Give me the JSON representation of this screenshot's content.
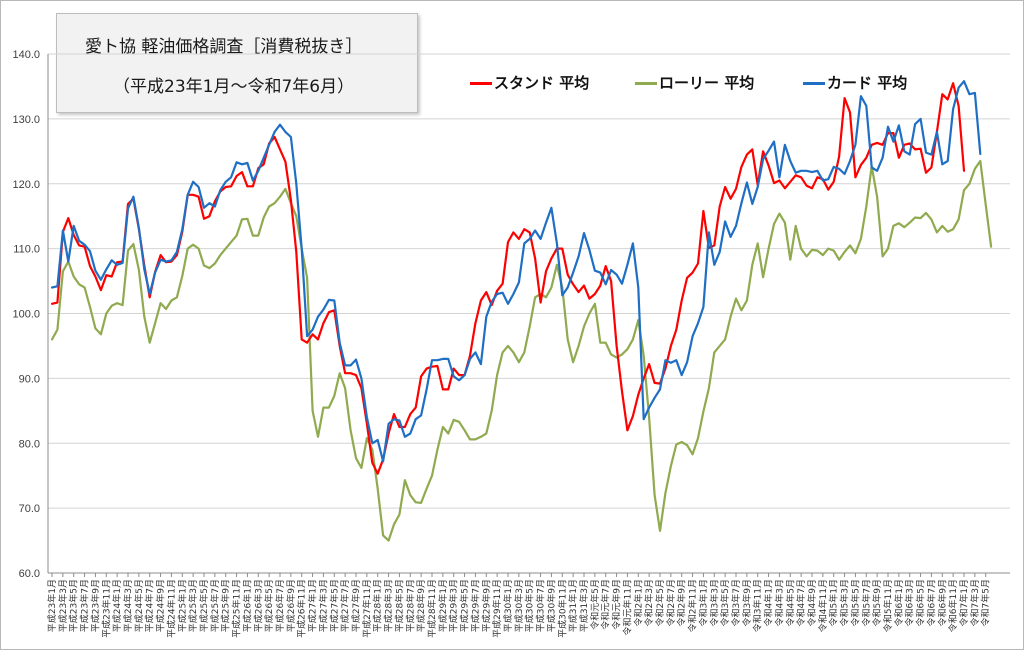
{
  "title": {
    "line1": "愛ト協 軽油価格調査［消費税抜き］",
    "line2": "（平成23年1月～令和7年6月）"
  },
  "colors": {
    "stand": "#ff0000",
    "lorry": "#8faa4f",
    "card": "#1f6fc4",
    "grid": "#d4d4d4",
    "axis": "#8c8c8c"
  },
  "chart_data": {
    "type": "line",
    "ylim": [
      60,
      140
    ],
    "yticks": [
      "60.0",
      "70.0",
      "80.0",
      "90.0",
      "100.0",
      "110.0",
      "120.0",
      "130.0",
      "140.0"
    ],
    "grid": true,
    "legend_position": "top",
    "x_labels": [
      "平成23年1月",
      "平成23年3月",
      "平成23年5月",
      "平成23年7月",
      "平成23年9月",
      "平成23年11月",
      "平成24年1月",
      "平成24年3月",
      "平成24年5月",
      "平成24年7月",
      "平成24年9月",
      "平成24年11月",
      "平成25年1月",
      "平成25年3月",
      "平成25年5月",
      "平成25年7月",
      "平成25年9月",
      "平成25年11月",
      "平成26年1月",
      "平成26年3月",
      "平成26年5月",
      "平成26年7月",
      "平成26年9月",
      "平成26年11月",
      "平成27年1月",
      "平成27年3月",
      "平成27年5月",
      "平成27年7月",
      "平成27年9月",
      "平成27年11月",
      "平成28年1月",
      "平成28年3月",
      "平成28年5月",
      "平成28年7月",
      "平成28年9月",
      "平成28年11月",
      "平成29年1月",
      "平成29年3月",
      "平成29年5月",
      "平成29年7月",
      "平成29年9月",
      "平成29年11月",
      "平成30年1月",
      "平成30年3月",
      "平成30年5月",
      "平成30年7月",
      "平成30年9月",
      "平成30年11月",
      "平成31年1月",
      "平成31年3月",
      "令和元年5月",
      "令和元年7月",
      "令和元年9月",
      "令和元年11月",
      "令和2年1月",
      "令和2年3月",
      "令和2年5月",
      "令和2年7月",
      "令和2年9月",
      "令和2年11月",
      "令和3年1月",
      "令和3年3月",
      "令和3年5月",
      "令和3年7月",
      "令和3年9月",
      "令和3年11月",
      "令和4年1月",
      "令和4年3月",
      "令和4年5月",
      "令和4年7月",
      "令和4年9月",
      "令和4年11月",
      "令和5年1月",
      "令和5年3月",
      "令和5年5月",
      "令和5年7月",
      "令和5年9月",
      "令和5年11月",
      "令和6年1月",
      "令和6年3月",
      "令和6年5月",
      "令和6年7月",
      "令和6年9月",
      "令和6年11月",
      "令和7年1月",
      "令和7年3月",
      "令和7年5月"
    ],
    "series": [
      {
        "name": "スタンド 平均",
        "values": [
          101.5,
          101.7,
          112.6,
          114.7,
          112.1,
          110.5,
          110.3,
          107.3,
          105.7,
          103.6,
          105.9,
          105.7,
          107.9,
          108.0,
          116.9,
          117.7,
          113.0,
          107.4,
          102.5,
          106.4,
          109.0,
          107.9,
          108.0,
          109.0,
          112.6,
          118.3,
          118.3,
          118.0,
          114.6,
          115.0,
          117.3,
          118.8,
          119.5,
          119.6,
          121.2,
          121.8,
          119.6,
          119.6,
          122.4,
          123.0,
          126.2,
          127.2,
          125.3,
          123.4,
          117.5,
          109.5,
          96.0,
          95.5,
          96.8,
          96.0,
          98.5,
          100.2,
          100.5,
          95.0,
          90.8,
          90.8,
          90.5,
          88.5,
          83.0,
          77.0,
          75.3,
          77.5,
          81.5,
          84.5,
          82.5,
          82.5,
          84.5,
          85.5,
          90.3,
          91.5,
          91.8,
          91.9,
          88.3,
          88.3,
          91.5,
          90.5,
          90.5,
          93.5,
          98.5,
          102.0,
          103.3,
          101.3,
          103.5,
          104.6,
          111.0,
          112.5,
          111.5,
          113.0,
          112.5,
          108.5,
          101.7,
          106.5,
          108.5,
          110.0,
          110.0,
          106.0,
          104.5,
          103.3,
          104.3,
          102.3,
          103.0,
          104.3,
          107.3,
          105.0,
          95.0,
          88.0,
          82.0,
          84.2,
          87.5,
          90.0,
          92.2,
          89.3,
          89.2,
          91.5,
          95.0,
          97.5,
          102.0,
          105.5,
          106.3,
          107.7,
          115.8,
          110.1,
          110.5,
          116.5,
          119.5,
          117.7,
          119.2,
          122.6,
          124.5,
          125.3,
          119.8,
          125.0,
          122.8,
          120.1,
          120.5,
          119.3,
          120.3,
          121.3,
          121.0,
          119.7,
          119.3,
          121.0,
          120.7,
          119.1,
          120.3,
          124.2,
          133.2,
          131.0,
          121.0,
          122.9,
          124.0,
          126.0,
          126.3,
          126.0,
          127.8,
          127.8,
          124.0,
          126.0,
          126.2,
          125.3,
          125.4,
          121.7,
          122.5,
          128.0,
          133.8,
          133.0,
          135.5,
          132.0,
          122.0
        ]
      },
      {
        "name": "ローリー 平均",
        "values": [
          96.0,
          97.5,
          106.5,
          108.0,
          105.7,
          104.5,
          104.0,
          101.0,
          97.7,
          96.8,
          100.0,
          101.2,
          101.6,
          101.3,
          109.7,
          110.7,
          106.7,
          99.5,
          95.5,
          98.5,
          101.6,
          100.7,
          102.0,
          102.5,
          105.8,
          110.0,
          110.6,
          110.0,
          107.4,
          107.0,
          107.7,
          109.0,
          110.0,
          111.0,
          112.0,
          114.5,
          114.6,
          112.0,
          112.0,
          114.8,
          116.5,
          117.0,
          118.0,
          119.2,
          117.0,
          115.0,
          110.0,
          105.5,
          85.0,
          81.0,
          85.5,
          85.5,
          87.3,
          90.8,
          88.5,
          82.0,
          77.7,
          76.2,
          80.8,
          79.0,
          73.0,
          65.8,
          65.0,
          67.5,
          69.0,
          74.3,
          72.0,
          70.9,
          70.8,
          73.0,
          75.0,
          79.0,
          82.5,
          81.5,
          83.6,
          83.3,
          82.0,
          80.6,
          80.6,
          81.0,
          81.5,
          85.0,
          90.5,
          94.0,
          95.0,
          94.0,
          92.5,
          94.0,
          98.0,
          102.5,
          103.0,
          102.5,
          104.0,
          107.5,
          104.0,
          96.0,
          92.5,
          95.0,
          98.0,
          100.0,
          101.5,
          95.5,
          95.5,
          93.7,
          93.2,
          93.7,
          94.5,
          96.0,
          99.0,
          93.5,
          84.0,
          72.0,
          66.5,
          72.3,
          76.5,
          79.8,
          80.2,
          79.7,
          78.3,
          80.8,
          84.9,
          88.5,
          94.0,
          95.0,
          96.0,
          99.5,
          102.3,
          100.5,
          102.0,
          107.5,
          110.8,
          105.6,
          110.0,
          113.8,
          115.4,
          114.0,
          108.3,
          113.5,
          110.0,
          108.8,
          109.8,
          109.7,
          109.0,
          110.0,
          109.7,
          108.3,
          109.5,
          110.5,
          109.3,
          111.5,
          116.5,
          122.7,
          118.0,
          108.8,
          110.0,
          113.5,
          113.9,
          113.3,
          114.0,
          114.8,
          114.7,
          115.5,
          114.5,
          112.5,
          113.5,
          112.6,
          113.0,
          114.5,
          119.0,
          120.0,
          122.3,
          123.5,
          116.8,
          110.3
        ]
      },
      {
        "name": "カード 平均",
        "values": [
          104.0,
          104.2,
          112.8,
          108.0,
          113.5,
          111.2,
          110.6,
          109.6,
          106.6,
          105.2,
          106.8,
          108.2,
          107.5,
          107.8,
          116.2,
          118.0,
          113.2,
          106.8,
          103.0,
          106.3,
          108.3,
          108.0,
          108.2,
          109.5,
          113.0,
          118.3,
          120.3,
          119.5,
          116.3,
          117.0,
          116.5,
          119.0,
          120.3,
          121.0,
          123.3,
          123.0,
          123.2,
          120.5,
          122.0,
          124.0,
          126.0,
          128.0,
          129.1,
          128.0,
          127.2,
          120.0,
          110.0,
          96.5,
          97.5,
          99.5,
          100.6,
          102.1,
          102.0,
          95.5,
          92.0,
          92.0,
          92.9,
          90.0,
          84.0,
          80.0,
          80.5,
          77.2,
          83.0,
          83.7,
          83.5,
          81.0,
          81.5,
          83.7,
          84.3,
          88.3,
          92.8,
          92.8,
          93.0,
          93.0,
          90.3,
          89.7,
          90.5,
          93.0,
          94.0,
          92.2,
          99.5,
          101.8,
          103.0,
          103.2,
          101.5,
          103.0,
          104.8,
          110.8,
          111.5,
          112.8,
          111.5,
          114.0,
          116.3,
          110.8,
          102.8,
          104.0,
          106.3,
          108.8,
          112.4,
          109.8,
          106.6,
          106.3,
          104.5,
          106.7,
          106.0,
          104.6,
          107.5,
          110.8,
          104.0,
          83.7,
          85.5,
          87.0,
          88.3,
          92.8,
          92.4,
          92.8,
          90.5,
          92.5,
          96.5,
          98.5,
          101.0,
          112.5,
          107.5,
          109.5,
          114.2,
          111.8,
          113.5,
          117.0,
          120.2,
          116.9,
          119.5,
          123.8,
          125.1,
          126.5,
          121.0,
          126.0,
          123.5,
          121.7,
          122.0,
          122.0,
          121.8,
          122.0,
          120.5,
          120.7,
          122.6,
          122.3,
          121.5,
          123.5,
          126.0,
          133.5,
          132.0,
          122.5,
          122.0,
          124.0,
          128.8,
          126.5,
          129.0,
          125.0,
          124.5,
          129.2,
          130.0,
          124.8,
          124.5,
          128.0,
          123.0,
          123.5,
          131.5,
          134.8,
          135.8,
          133.8,
          134.0,
          124.6
        ]
      }
    ]
  }
}
